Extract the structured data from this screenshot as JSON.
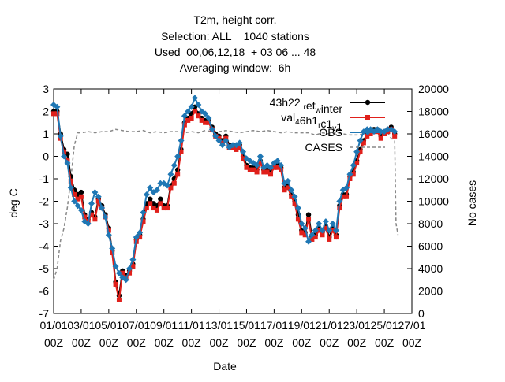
{
  "chart_data": {
    "type": "line",
    "title_lines": [
      "T2m, height corr.",
      "Selection: ALL    1040 stations",
      "Used  00,06,12,18  + 03 06 ... 48",
      "Averaging window:  6h"
    ],
    "xlabel": "Date",
    "ylabel": "deg C",
    "y2label": "No cases",
    "x_ticks": [
      {
        "day": 0,
        "l1": "01/01",
        "l2": "00Z"
      },
      {
        "day": 2,
        "l1": "03/01",
        "l2": "00Z"
      },
      {
        "day": 4,
        "l1": "05/01",
        "l2": "00Z"
      },
      {
        "day": 6,
        "l1": "07/01",
        "l2": "00Z"
      },
      {
        "day": 8,
        "l1": "09/01",
        "l2": "00Z"
      },
      {
        "day": 10,
        "l1": "11/01",
        "l2": "00Z"
      },
      {
        "day": 12,
        "l1": "13/01",
        "l2": "00Z"
      },
      {
        "day": 14,
        "l1": "15/01",
        "l2": "00Z"
      },
      {
        "day": 16,
        "l1": "17/01",
        "l2": "00Z"
      },
      {
        "day": 18,
        "l1": "19/01",
        "l2": "00Z"
      },
      {
        "day": 20,
        "l1": "21/01",
        "l2": "00Z"
      },
      {
        "day": 22,
        "l1": "23/01",
        "l2": "00Z"
      },
      {
        "day": 24,
        "l1": "25/01",
        "l2": "00Z"
      },
      {
        "day": 26,
        "l1": "27/01",
        "l2": "00Z"
      }
    ],
    "xlim": [
      0,
      26
    ],
    "ylim": [
      -7,
      3
    ],
    "y_ticks": [
      "-7",
      "-6",
      "-5",
      "-4",
      "-3",
      "-2",
      "-1",
      "0",
      "1",
      "2",
      "3"
    ],
    "y2lim": [
      0,
      20000
    ],
    "y2_ticks": [
      "0",
      "2000",
      "4000",
      "6000",
      "8000",
      "10000",
      "12000",
      "14000",
      "16000",
      "18000",
      "20000"
    ],
    "legend_position": "top-right",
    "series": [
      {
        "name": "43h22 r ef w inter",
        "legend_parts": [
          [
            "43h22 ",
            0
          ],
          [
            "r",
            1
          ],
          [
            "ef",
            0
          ],
          [
            "w",
            1
          ],
          [
            "inter",
            0
          ]
        ],
        "color": "#000000",
        "marker": "circle",
        "axis": "y",
        "x": [
          0.0,
          0.25,
          0.5,
          0.75,
          1.0,
          1.25,
          1.5,
          1.75,
          2.0,
          2.25,
          2.5,
          2.75,
          3.0,
          3.25,
          3.5,
          3.75,
          4.0,
          4.25,
          4.5,
          4.75,
          5.0,
          5.25,
          5.5,
          5.75,
          6.0,
          6.25,
          6.5,
          6.75,
          7.0,
          7.25,
          7.5,
          7.75,
          8.0,
          8.25,
          8.5,
          8.75,
          9.0,
          9.25,
          9.5,
          9.75,
          10.0,
          10.25,
          10.5,
          10.75,
          11.0,
          11.25,
          11.5,
          11.75,
          12.0,
          12.25,
          12.5,
          12.75,
          13.0,
          13.25,
          13.5,
          13.75,
          14.0,
          14.25,
          14.5,
          14.75,
          15.0,
          15.25,
          15.5,
          15.75,
          16.0,
          16.25,
          16.5,
          16.75,
          17.0,
          17.25,
          17.5,
          17.75,
          18.0,
          18.25,
          18.5,
          18.75,
          19.0,
          19.25,
          19.5,
          19.75,
          20.0,
          20.25,
          20.5,
          20.75,
          21.0,
          21.25,
          21.5,
          21.75,
          22.0,
          22.25,
          22.5,
          22.75,
          23.0,
          23.25,
          23.5,
          23.75,
          24.0,
          24.25,
          24.5,
          24.75
        ],
        "y": [
          2.0,
          2.0,
          1.0,
          0.3,
          0.1,
          -0.9,
          -1.5,
          -1.7,
          -1.6,
          -2.6,
          -2.8,
          -2.5,
          -2.7,
          -1.9,
          -2.2,
          -2.6,
          -3.2,
          -4.2,
          -5.6,
          -6.2,
          -5.1,
          -5.3,
          -5.1,
          -4.8,
          -3.7,
          -3.5,
          -2.8,
          -2.1,
          -1.9,
          -2.1,
          -2.2,
          -1.9,
          -2.2,
          -2.2,
          -1.3,
          -1.0,
          -0.6,
          0.3,
          1.5,
          1.7,
          1.9,
          2.2,
          1.9,
          1.7,
          1.6,
          1.6,
          1.3,
          1.0,
          0.9,
          0.7,
          0.9,
          0.5,
          0.5,
          0.4,
          0.5,
          0.0,
          -0.4,
          -0.5,
          -0.5,
          -0.6,
          -0.2,
          -0.6,
          -0.6,
          -0.7,
          -0.4,
          -0.4,
          -0.5,
          -1.4,
          -1.3,
          -1.7,
          -2.0,
          -2.6,
          -3.3,
          -3.4,
          -2.6,
          -3.6,
          -3.5,
          -3.2,
          -3.4,
          -3.1,
          -3.6,
          -3.2,
          -3.5,
          -2.2,
          -1.7,
          -1.7,
          -0.9,
          -0.7,
          -0.2,
          0.3,
          0.7,
          1.0,
          1.1,
          1.2,
          1.2,
          0.9,
          1.1,
          1.2,
          1.3,
          1.0
        ]
      },
      {
        "name": "val 4 6h1 r c1 v 1",
        "legend_parts": [
          [
            "val",
            0
          ],
          [
            "4",
            1
          ],
          [
            "6h1",
            0
          ],
          [
            "r",
            1
          ],
          [
            "c1",
            0
          ],
          [
            "v",
            1
          ],
          [
            "1",
            0
          ]
        ],
        "color": "#e0201b",
        "marker": "square",
        "axis": "y",
        "x": [
          0.0,
          0.25,
          0.5,
          0.75,
          1.0,
          1.25,
          1.5,
          1.75,
          2.0,
          2.25,
          2.5,
          2.75,
          3.0,
          3.25,
          3.5,
          3.75,
          4.0,
          4.25,
          4.5,
          4.75,
          5.0,
          5.25,
          5.5,
          5.75,
          6.0,
          6.25,
          6.5,
          6.75,
          7.0,
          7.25,
          7.5,
          7.75,
          8.0,
          8.25,
          8.5,
          8.75,
          9.0,
          9.25,
          9.5,
          9.75,
          10.0,
          10.25,
          10.5,
          10.75,
          11.0,
          11.25,
          11.5,
          11.75,
          12.0,
          12.25,
          12.5,
          12.75,
          13.0,
          13.25,
          13.5,
          13.75,
          14.0,
          14.25,
          14.5,
          14.75,
          15.0,
          15.25,
          15.5,
          15.75,
          16.0,
          16.25,
          16.5,
          16.75,
          17.0,
          17.25,
          17.5,
          17.75,
          18.0,
          18.25,
          18.5,
          18.75,
          19.0,
          19.25,
          19.5,
          19.75,
          20.0,
          20.25,
          20.5,
          20.75,
          21.0,
          21.25,
          21.5,
          21.75,
          22.0,
          22.25,
          22.5,
          22.75,
          23.0,
          23.25,
          23.5,
          23.75,
          24.0,
          24.25,
          24.5,
          24.75
        ],
        "y": [
          1.9,
          1.9,
          0.8,
          0.2,
          -0.2,
          -1.1,
          -1.7,
          -1.9,
          -1.8,
          -2.7,
          -2.9,
          -2.6,
          -2.8,
          -2.0,
          -2.3,
          -2.7,
          -3.3,
          -4.3,
          -5.7,
          -6.4,
          -5.2,
          -5.4,
          -5.2,
          -4.9,
          -3.8,
          -3.6,
          -2.9,
          -2.3,
          -2.1,
          -2.3,
          -2.4,
          -2.1,
          -2.3,
          -2.3,
          -1.4,
          -1.2,
          -0.8,
          0.2,
          1.4,
          1.6,
          1.7,
          2.0,
          1.8,
          1.6,
          1.5,
          1.5,
          1.2,
          0.9,
          0.8,
          0.6,
          0.8,
          0.4,
          0.4,
          0.3,
          0.4,
          -0.1,
          -0.5,
          -0.6,
          -0.6,
          -0.7,
          -0.3,
          -0.7,
          -0.7,
          -0.8,
          -0.5,
          -0.5,
          -0.6,
          -1.5,
          -1.4,
          -1.8,
          -2.1,
          -2.8,
          -3.4,
          -3.5,
          -2.8,
          -3.7,
          -3.6,
          -3.3,
          -3.5,
          -3.2,
          -3.7,
          -3.3,
          -3.6,
          -2.3,
          -1.8,
          -1.8,
          -1.0,
          -0.8,
          -0.3,
          0.2,
          0.6,
          0.9,
          1.0,
          1.1,
          1.1,
          0.8,
          1.0,
          1.1,
          1.2,
          0.9
        ]
      },
      {
        "name": "OBS",
        "legend_parts": [
          [
            "OBS",
            0
          ]
        ],
        "color": "#1f77b4",
        "marker": "diamond",
        "axis": "y",
        "x": [
          0.0,
          0.25,
          0.5,
          0.75,
          1.0,
          1.25,
          1.5,
          1.75,
          2.0,
          2.25,
          2.5,
          2.75,
          3.0,
          3.25,
          3.5,
          3.75,
          4.0,
          4.25,
          4.5,
          4.75,
          5.0,
          5.25,
          5.5,
          5.75,
          6.0,
          6.25,
          6.5,
          6.75,
          7.0,
          7.25,
          7.5,
          7.75,
          8.0,
          8.25,
          8.5,
          8.75,
          9.0,
          9.25,
          9.5,
          9.75,
          10.0,
          10.25,
          10.5,
          10.75,
          11.0,
          11.25,
          11.5,
          11.75,
          12.0,
          12.25,
          12.5,
          12.75,
          13.0,
          13.25,
          13.5,
          13.75,
          14.0,
          14.25,
          14.5,
          14.75,
          15.0,
          15.25,
          15.5,
          15.75,
          16.0,
          16.25,
          16.5,
          16.75,
          17.0,
          17.25,
          17.5,
          17.75,
          18.0,
          18.25,
          18.5,
          18.75,
          19.0,
          19.25,
          19.5,
          19.75,
          20.0,
          20.25,
          20.5,
          20.75,
          21.0,
          21.25,
          21.5,
          21.75,
          22.0,
          22.25,
          22.5,
          22.75,
          23.0,
          23.25,
          23.5,
          23.75,
          24.0,
          24.25,
          24.5,
          24.75
        ],
        "y": [
          2.3,
          2.2,
          0.9,
          0.0,
          -0.3,
          -1.4,
          -2.0,
          -2.2,
          -2.4,
          -2.9,
          -3.0,
          -2.1,
          -1.6,
          -1.8,
          -2.3,
          -2.7,
          -3.5,
          -4.1,
          -4.9,
          -5.2,
          -5.4,
          -5.5,
          -5.0,
          -4.6,
          -3.6,
          -3.4,
          -2.5,
          -1.7,
          -1.4,
          -1.6,
          -1.5,
          -1.2,
          -1.2,
          -1.3,
          -0.8,
          -0.4,
          0.0,
          0.7,
          1.8,
          2.0,
          2.2,
          2.6,
          2.3,
          2.0,
          1.9,
          1.7,
          1.2,
          0.9,
          0.7,
          0.5,
          0.7,
          0.4,
          0.5,
          0.5,
          0.6,
          0.2,
          -0.1,
          -0.2,
          -0.3,
          -0.4,
          0.0,
          -0.5,
          -0.4,
          -0.5,
          -0.3,
          -0.2,
          -0.4,
          -1.2,
          -1.1,
          -1.5,
          -1.8,
          -2.3,
          -3.0,
          -3.2,
          -3.8,
          -3.5,
          -3.3,
          -3.0,
          -3.3,
          -2.9,
          -3.3,
          -3.0,
          -3.3,
          -2.0,
          -1.5,
          -1.4,
          -0.8,
          -0.4,
          0.2,
          0.7,
          1.1,
          1.2,
          1.2,
          1.1,
          1.2,
          1.1,
          1.1,
          1.2,
          1.2,
          1.1
        ]
      },
      {
        "name": "CASES",
        "legend_parts": [
          [
            "CASES",
            0
          ]
        ],
        "color": "#888888",
        "marker": "none",
        "dashed": true,
        "axis": "y2",
        "x": [
          0.0,
          0.25,
          0.5,
          0.75,
          1.0,
          1.25,
          1.5,
          1.75,
          2.0,
          2.5,
          3.0,
          3.5,
          4.0,
          4.5,
          5.0,
          5.5,
          6.0,
          6.5,
          7.0,
          7.5,
          8.0,
          8.5,
          9.0,
          9.5,
          10.0,
          10.5,
          11.0,
          11.5,
          12.0,
          12.5,
          13.0,
          13.5,
          14.0,
          14.5,
          15.0,
          15.5,
          16.0,
          16.5,
          17.0,
          17.5,
          18.0,
          18.5,
          19.0,
          19.5,
          20.0,
          20.5,
          21.0,
          21.5,
          22.0,
          22.5,
          23.0,
          23.5,
          24.0,
          24.25,
          24.5,
          24.75,
          24.85,
          25.0
        ],
        "y": [
          3000,
          4000,
          6500,
          7600,
          9500,
          12000,
          15000,
          16100,
          16100,
          16200,
          16100,
          16200,
          16200,
          16400,
          16300,
          16200,
          16200,
          16300,
          16100,
          16200,
          16100,
          16200,
          16200,
          16100,
          16200,
          16100,
          16300,
          16200,
          16200,
          16300,
          16200,
          16100,
          16200,
          16300,
          16200,
          16300,
          16200,
          16100,
          16200,
          16100,
          16100,
          16100,
          15900,
          16100,
          16000,
          16100,
          16000,
          15900,
          15900,
          16000,
          16000,
          16100,
          16000,
          16100,
          15600,
          15400,
          8000,
          7000
        ]
      }
    ]
  }
}
